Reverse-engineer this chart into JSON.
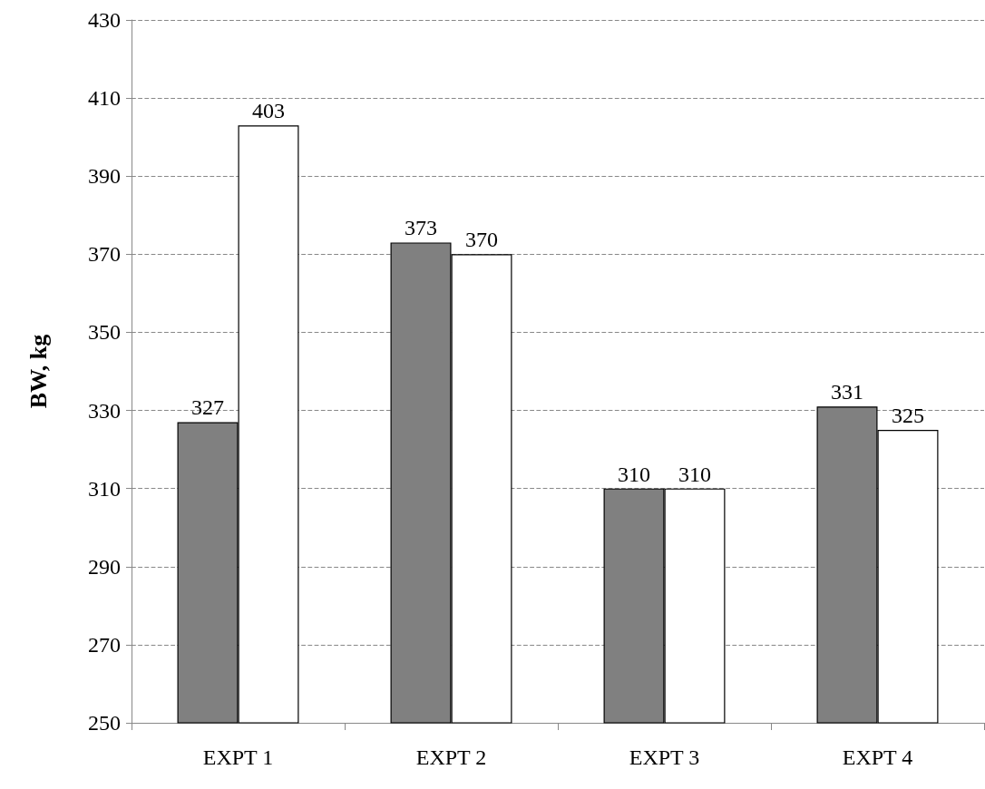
{
  "chart_data": {
    "type": "bar",
    "ylabel": "BW, kg",
    "categories": [
      "EXPT 1",
      "EXPT 2",
      "EXPT 3",
      "EXPT 4"
    ],
    "series": [
      {
        "color": "#808080",
        "values": [
          327,
          373,
          310,
          331
        ]
      },
      {
        "color": "#ffffff",
        "values": [
          403,
          370,
          310,
          325
        ]
      }
    ],
    "ylim": [
      250,
      430
    ],
    "yticks": [
      250,
      270,
      290,
      310,
      330,
      350,
      370,
      390,
      410,
      430
    ],
    "grid": "y",
    "data_labels": true
  }
}
